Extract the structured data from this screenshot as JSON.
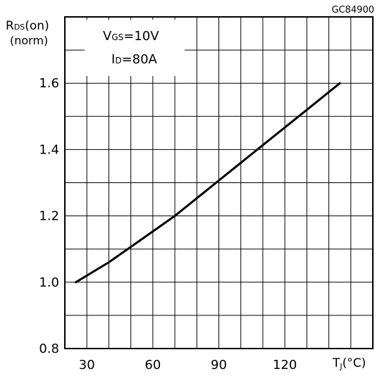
{
  "chart_data": {
    "type": "line",
    "figure_code": "GC84900",
    "ylabel_main": "R",
    "ylabel_sub": "DS",
    "ylabel_suffix": "(on)",
    "ylabel_line2": "(norm)",
    "xlabel_main": "T",
    "xlabel_sub": "J",
    "xlabel_suffix": "(°C)",
    "annotation": {
      "line1_main": "V",
      "line1_sub": "GS",
      "line1_value": "=10V",
      "line2_main": "I",
      "line2_sub": "D",
      "line2_value": "=80A"
    },
    "x_ticks": [
      30,
      60,
      90,
      120
    ],
    "y_ticks": [
      "0.8",
      "1.0",
      "1.2",
      "1.4",
      "1.6"
    ],
    "xlim": [
      20,
      160
    ],
    "ylim": [
      0.8,
      1.8
    ],
    "grid": true,
    "series": [
      {
        "x": [
          25,
          40,
          55,
          70,
          85,
          100,
          115,
          130,
          145
        ],
        "y": [
          1.0,
          1.06,
          1.13,
          1.2,
          1.28,
          1.36,
          1.44,
          1.52,
          1.6
        ]
      }
    ]
  }
}
